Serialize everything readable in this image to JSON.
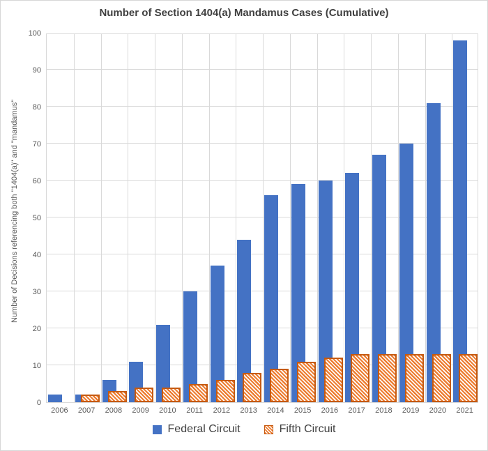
{
  "title": "Number of Section 1404(a) Mandamus Cases (Cumulative)",
  "chart_data": {
    "type": "bar",
    "title": "Number of Section 1404(a) Mandamus Cases (Cumulative)",
    "categories": [
      "2006",
      "2007",
      "2008",
      "2009",
      "2010",
      "2011",
      "2012",
      "2013",
      "2014",
      "2015",
      "2016",
      "2017",
      "2018",
      "2019",
      "2020",
      "2021"
    ],
    "series": [
      {
        "name": "Federal Circuit",
        "pattern": "solid",
        "color": "#4472C4",
        "values": [
          2,
          2,
          6,
          11,
          21,
          30,
          37,
          44,
          56,
          59,
          60,
          62,
          67,
          70,
          81,
          98
        ]
      },
      {
        "name": "Fifth Circuit",
        "pattern": "diagonal-hatch",
        "color": "#ED7D31",
        "border_color": "#C55A11",
        "values": [
          0,
          2,
          3,
          4,
          4,
          5,
          6,
          8,
          9,
          11,
          12,
          13,
          13,
          13,
          13,
          13
        ]
      }
    ],
    "xlabel": "",
    "ylabel": "Number of Decisions referencing both \"1404(a)\" and \"mandamus\"",
    "ylim": [
      0,
      100
    ],
    "ytick_step": 10,
    "grid": true,
    "gridline_color": "#D9D9D9",
    "axis_text_color": "#595959",
    "legend_position": "bottom"
  }
}
